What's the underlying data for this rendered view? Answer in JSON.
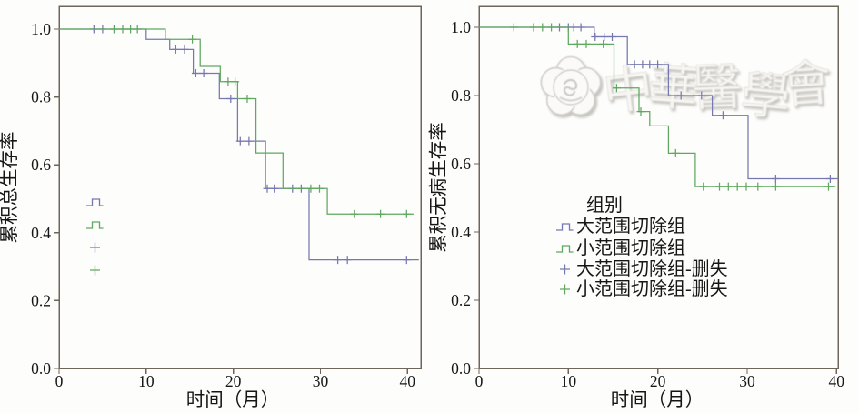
{
  "figure": {
    "background": "#fdfdfb",
    "axes_color": "#6f665b",
    "text_color": "#161616"
  },
  "watermark": {
    "name": "chinese-medical-association-seal",
    "text": "中華醫學會"
  },
  "chart_data": [
    {
      "type": "line",
      "subtype": "kaplan_meier_step",
      "title": "",
      "xlabel": "时间（月）",
      "ylabel": "累积总生存率",
      "xlim": [
        0,
        40
      ],
      "ylim": [
        0.0,
        1.0
      ],
      "xticks": [
        "0",
        "10",
        "20",
        "30",
        "40"
      ],
      "yticks": [
        "0.0",
        "0.2",
        "0.4",
        "0.6",
        "0.8",
        "1.0"
      ],
      "grid": false,
      "legend": {
        "visible": true,
        "symbols_only": true,
        "position": "inside-left-middle",
        "title": "",
        "entries": [
          {
            "label": "",
            "symbol": "step",
            "color": "#7678b1"
          },
          {
            "label": "",
            "symbol": "step",
            "color": "#5fa85f"
          },
          {
            "label": "",
            "symbol": "plus",
            "color": "#7678b1"
          },
          {
            "label": "",
            "symbol": "plus",
            "color": "#5fa85f"
          }
        ]
      },
      "series": [
        {
          "name": "大范围切除组",
          "color": "#7678b1",
          "points": [
            [
              0,
              1.0
            ],
            [
              10,
              1.0
            ],
            [
              10,
              0.97
            ],
            [
              12.7,
              0.97
            ],
            [
              12.7,
              0.94
            ],
            [
              15.4,
              0.94
            ],
            [
              15.4,
              0.87
            ],
            [
              18.4,
              0.87
            ],
            [
              18.4,
              0.795
            ],
            [
              20.5,
              0.795
            ],
            [
              20.5,
              0.67
            ],
            [
              23.7,
              0.67
            ],
            [
              23.7,
              0.53
            ],
            [
              28.7,
              0.53
            ],
            [
              28.7,
              0.32
            ],
            [
              41.3,
              0.32
            ]
          ],
          "censor_name": "大范围切除组-删失",
          "censors": [
            [
              4.0,
              1.0
            ],
            [
              5.0,
              1.0
            ],
            [
              13.4,
              0.94
            ],
            [
              14.4,
              0.94
            ],
            [
              15.7,
              0.87
            ],
            [
              16.6,
              0.87
            ],
            [
              19.7,
              0.795
            ],
            [
              20.8,
              0.67
            ],
            [
              21.8,
              0.67
            ],
            [
              23.9,
              0.53
            ],
            [
              24.7,
              0.53
            ],
            [
              26.8,
              0.53
            ],
            [
              27.8,
              0.53
            ],
            [
              32.0,
              0.32
            ],
            [
              33.1,
              0.32
            ],
            [
              39.9,
              0.32
            ]
          ]
        },
        {
          "name": "小范围切除组",
          "color": "#5fa85f",
          "points": [
            [
              0,
              1.0
            ],
            [
              12.2,
              1.0
            ],
            [
              12.2,
              0.97
            ],
            [
              16.2,
              0.97
            ],
            [
              16.2,
              0.89
            ],
            [
              18.5,
              0.89
            ],
            [
              18.5,
              0.845
            ],
            [
              20.5,
              0.845
            ],
            [
              20.5,
              0.795
            ],
            [
              22.6,
              0.795
            ],
            [
              22.6,
              0.635
            ],
            [
              25.7,
              0.635
            ],
            [
              25.7,
              0.53
            ],
            [
              30.8,
              0.53
            ],
            [
              30.8,
              0.455
            ],
            [
              40.7,
              0.455
            ]
          ],
          "censor_name": "小范围切除组-删失",
          "censors": [
            [
              6.3,
              1.0
            ],
            [
              7.3,
              1.0
            ],
            [
              8.2,
              1.0
            ],
            [
              9.0,
              1.0
            ],
            [
              15.3,
              0.97
            ],
            [
              19.4,
              0.845
            ],
            [
              20.2,
              0.845
            ],
            [
              21.6,
              0.795
            ],
            [
              28.9,
              0.53
            ],
            [
              29.9,
              0.53
            ],
            [
              33.9,
              0.455
            ],
            [
              36.9,
              0.455
            ],
            [
              39.9,
              0.455
            ]
          ]
        }
      ]
    },
    {
      "type": "line",
      "subtype": "kaplan_meier_step",
      "title": "",
      "xlabel": "时间（月）",
      "ylabel": "累积无病生存率",
      "xlim": [
        0,
        40
      ],
      "ylim": [
        0.0,
        1.0
      ],
      "xticks": [
        "0",
        "10",
        "20",
        "30",
        "40"
      ],
      "yticks": [
        "0.0",
        "0.2",
        "0.4",
        "0.6",
        "0.8",
        "1.0"
      ],
      "grid": false,
      "legend": {
        "visible": true,
        "symbols_only": false,
        "position": "inside-center",
        "title": "组别",
        "entries": [
          {
            "label": "大范围切除组",
            "symbol": "step",
            "color": "#7678b1"
          },
          {
            "label": "小范围切除组",
            "symbol": "step",
            "color": "#5fa85f"
          },
          {
            "label": "大范围切除组-删失",
            "symbol": "plus",
            "color": "#7678b1"
          },
          {
            "label": "小范围切除组-删失",
            "symbol": "plus",
            "color": "#5fa85f"
          }
        ]
      },
      "series": [
        {
          "name": "大范围切除组",
          "color": "#7678b1",
          "points": [
            [
              0,
              1.0
            ],
            [
              12.9,
              1.0
            ],
            [
              12.9,
              0.972
            ],
            [
              16.6,
              0.972
            ],
            [
              16.6,
              0.891
            ],
            [
              21.2,
              0.891
            ],
            [
              21.2,
              0.8
            ],
            [
              26.1,
              0.8
            ],
            [
              26.1,
              0.742
            ],
            [
              30.1,
              0.742
            ],
            [
              30.1,
              0.556
            ],
            [
              40.2,
              0.556
            ]
          ],
          "censor_name": "大范围切除组-删失",
          "censors": [
            [
              9.0,
              1.0
            ],
            [
              10.0,
              1.0
            ],
            [
              10.6,
              1.0
            ],
            [
              11.4,
              1.0
            ],
            [
              13.0,
              0.972
            ],
            [
              14.0,
              0.972
            ],
            [
              14.9,
              0.972
            ],
            [
              17.4,
              0.891
            ],
            [
              18.3,
              0.891
            ],
            [
              19.1,
              0.891
            ],
            [
              20.0,
              0.891
            ],
            [
              22.6,
              0.8
            ],
            [
              24.9,
              0.8
            ],
            [
              27.3,
              0.742
            ],
            [
              33.2,
              0.556
            ],
            [
              39.3,
              0.556
            ]
          ]
        },
        {
          "name": "小范围切除组",
          "color": "#5fa85f",
          "points": [
            [
              0,
              1.0
            ],
            [
              10.0,
              1.0
            ],
            [
              10.0,
              0.951
            ],
            [
              15.1,
              0.951
            ],
            [
              15.1,
              0.822
            ],
            [
              17.9,
              0.822
            ],
            [
              17.9,
              0.753
            ],
            [
              19.1,
              0.753
            ],
            [
              19.1,
              0.711
            ],
            [
              21.2,
              0.711
            ],
            [
              21.2,
              0.631
            ],
            [
              24.2,
              0.631
            ],
            [
              24.2,
              0.533
            ],
            [
              39.9,
              0.533
            ]
          ],
          "censor_name": "小范围切除组-删失",
          "censors": [
            [
              3.9,
              1.0
            ],
            [
              6.1,
              1.0
            ],
            [
              7.1,
              1.0
            ],
            [
              8.1,
              1.0
            ],
            [
              11.0,
              0.951
            ],
            [
              12.0,
              0.951
            ],
            [
              13.9,
              0.951
            ],
            [
              15.4,
              0.822
            ],
            [
              18.1,
              0.753
            ],
            [
              22.0,
              0.631
            ],
            [
              25.1,
              0.533
            ],
            [
              26.9,
              0.533
            ],
            [
              27.9,
              0.533
            ],
            [
              28.9,
              0.533
            ],
            [
              29.9,
              0.533
            ],
            [
              31.2,
              0.533
            ],
            [
              33.2,
              0.533
            ],
            [
              39.1,
              0.533
            ]
          ]
        }
      ]
    }
  ]
}
